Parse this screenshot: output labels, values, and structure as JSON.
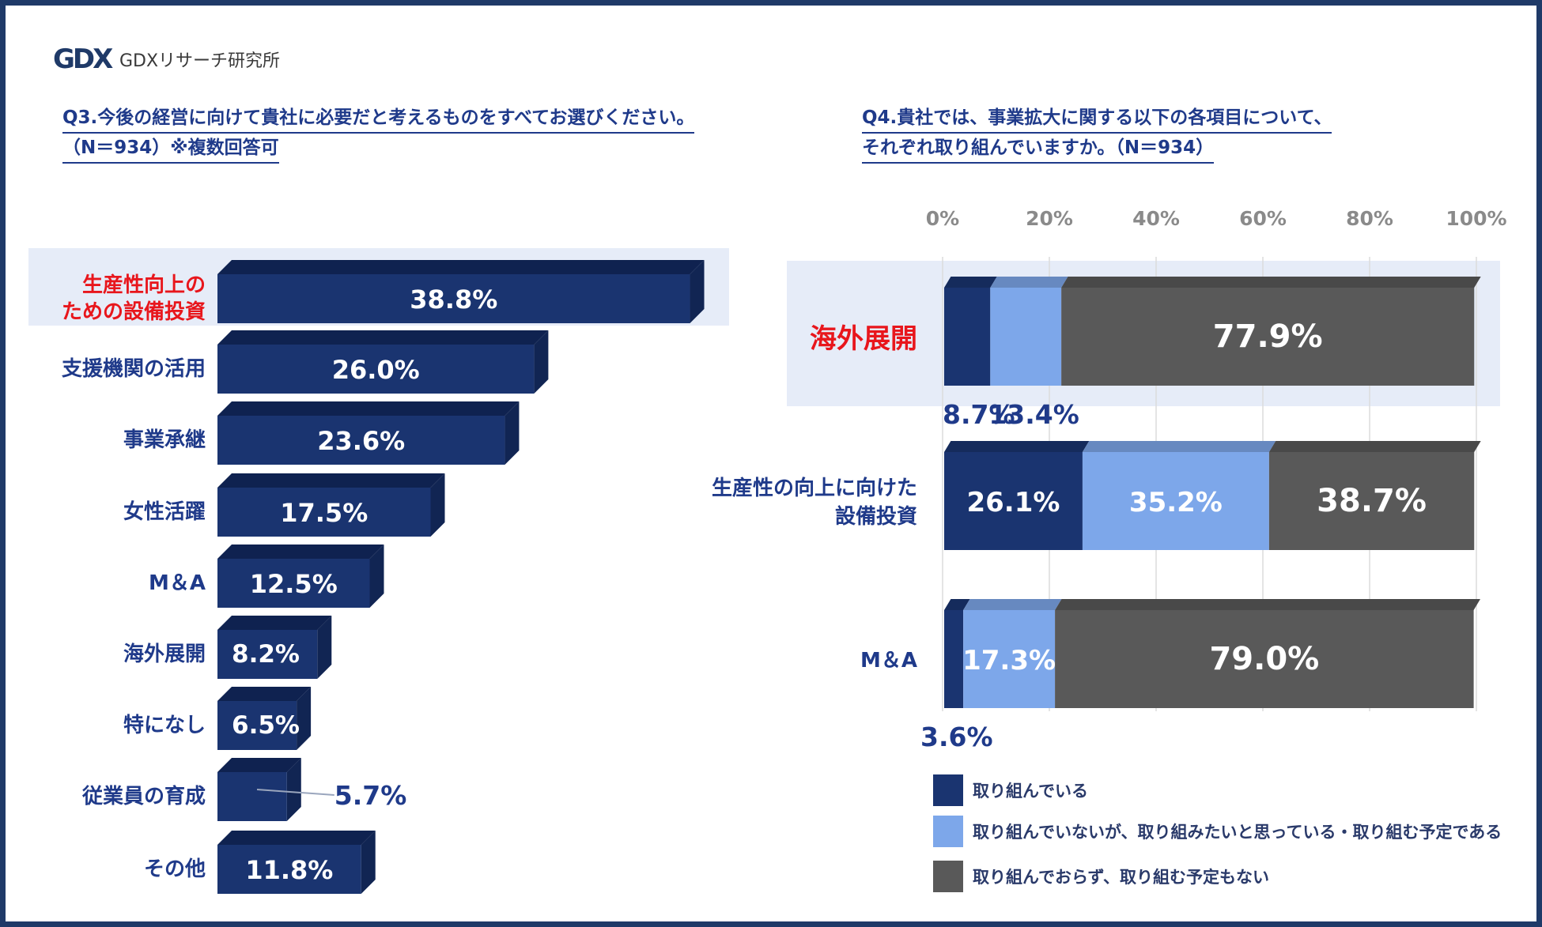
{
  "brand": {
    "logo_text": "GDXリサーチ研究所",
    "logo_mark": "GDX"
  },
  "colors": {
    "navy": "#1a3470",
    "navy_dark": "#112553",
    "navy_top": "#0f2250",
    "light_blue": "#7da7ea",
    "gray": "#595959",
    "highlight_bg": "#e6ecf8",
    "highlight_text": "#e8161c",
    "label_text": "#1f3a8a"
  },
  "q3": {
    "title_line1": "Q3.今後の経営に向けて貴社に必要だと考えるものをすべてお選びください。",
    "title_line2": "（N＝934）※複数回答可"
  },
  "q4": {
    "title_line1": "Q4.貴社では、事業拡大に関する以下の各項目について、",
    "title_line2": "それぞれ取り組んでいますか。（N＝934）"
  },
  "chart_data": [
    {
      "type": "bar",
      "orientation": "horizontal",
      "categories": [
        "生産性向上の\nための設備投資",
        "支援機関の活用",
        "事業承継",
        "女性活躍",
        "M＆A",
        "海外展開",
        "特になし",
        "従業員の育成",
        "その他"
      ],
      "values": [
        38.8,
        26.0,
        23.6,
        17.5,
        12.5,
        8.2,
        6.5,
        5.7,
        11.8
      ],
      "value_labels": [
        "38.8%",
        "26.0%",
        "23.6%",
        "17.5%",
        "12.5%",
        "8.2%",
        "6.5%",
        "5.7%",
        "11.8%"
      ],
      "highlight_index": 0
    },
    {
      "type": "bar",
      "orientation": "horizontal",
      "stacked": true,
      "categories": [
        "海外展開",
        "生産性の向上に向けた\n設備投資",
        "M＆A"
      ],
      "ticks": [
        "0%",
        "20%",
        "40%",
        "60%",
        "80%",
        "100%"
      ],
      "xlim": [
        0,
        100
      ],
      "grid": true,
      "highlight_index": 0,
      "legend_position": "bottom",
      "series": [
        {
          "name": "取り組んでいる",
          "values": [
            8.7,
            26.1,
            3.6
          ],
          "labels": [
            "8.7%",
            "26.1%",
            "3.6%"
          ]
        },
        {
          "name": "取り組んでいないが、取り組みたいと思っている・取り組む予定である",
          "values": [
            13.4,
            35.2,
            17.3
          ],
          "labels": [
            "13.4%",
            "35.2%",
            "17.3%"
          ]
        },
        {
          "name": "取り組んでおらず、取り組む予定もない",
          "values": [
            77.9,
            38.7,
            79.0
          ],
          "labels": [
            "77.9%",
            "38.7%",
            "79.0%"
          ]
        }
      ]
    }
  ]
}
